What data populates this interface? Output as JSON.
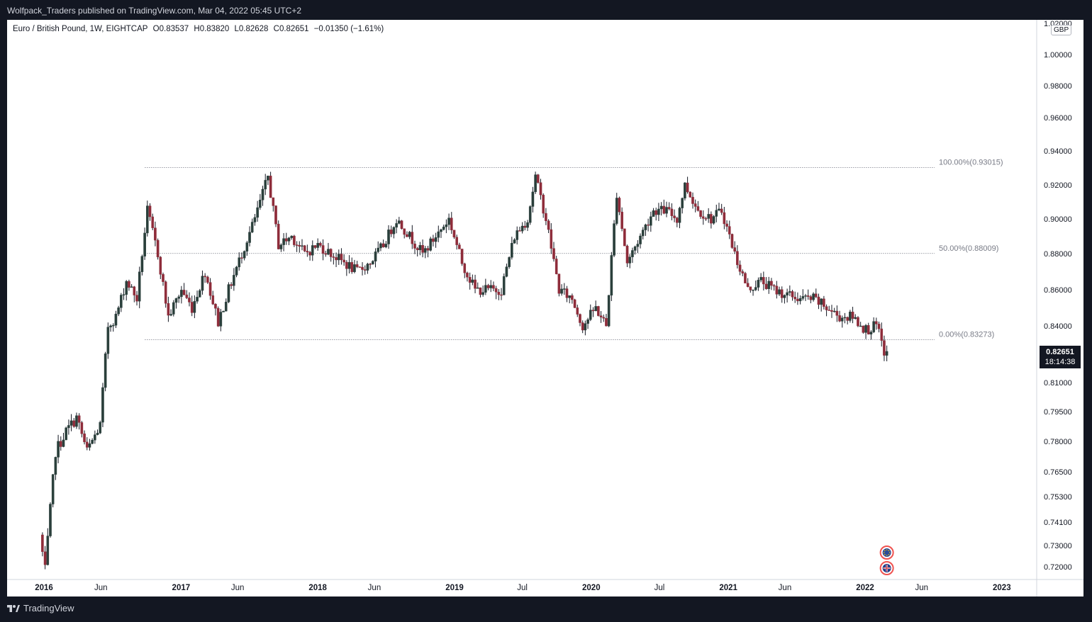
{
  "header": {
    "publisher_line": "Wolfpack_Traders published on TradingView.com, Mar 04, 2022 05:45 UTC+2"
  },
  "legend": {
    "symbol": "Euro / British Pound, 1W, EIGHTCAP",
    "open": "O0.83537",
    "high": "H0.83820",
    "low": "L0.82628",
    "close": "C0.82651",
    "change": "−0.01350 (−1.61%)"
  },
  "price_tag": {
    "price": "0.82651",
    "countdown": "18:14:38"
  },
  "unit_badge": "GBP",
  "footer": {
    "brand": "TradingView"
  },
  "colors": {
    "up": "#26a69a",
    "down": "#ef5350",
    "candle_body_up": "#2a3f3b",
    "candle_body_down": "#8e2c3a",
    "frame": "#131722"
  },
  "chart_data": {
    "type": "candlestick",
    "title": "Euro / British Pound, 1W, EIGHTCAP",
    "y_axis": {
      "unit": "GBP",
      "scale": "log",
      "ticks": [
        "0.72000",
        "0.73000",
        "0.74100",
        "0.75300",
        "0.76500",
        "0.78000",
        "0.79500",
        "0.81000",
        "0.84000",
        "0.86000",
        "0.88000",
        "0.90000",
        "0.92000",
        "0.94000",
        "0.96000",
        "0.98000",
        "1.00000",
        "1.02000"
      ]
    },
    "x_axis": {
      "ticks": [
        {
          "label": "2016",
          "year": true
        },
        {
          "label": "Jun",
          "year": false
        },
        {
          "label": "2017",
          "year": true
        },
        {
          "label": "Jun",
          "year": false
        },
        {
          "label": "2018",
          "year": true
        },
        {
          "label": "Jun",
          "year": false
        },
        {
          "label": "2019",
          "year": true
        },
        {
          "label": "Jul",
          "year": false
        },
        {
          "label": "2020",
          "year": true
        },
        {
          "label": "Jul",
          "year": false
        },
        {
          "label": "2021",
          "year": true
        },
        {
          "label": "Jun",
          "year": false
        },
        {
          "label": "2022",
          "year": true
        },
        {
          "label": "Jun",
          "year": false
        },
        {
          "label": "2023",
          "year": true
        }
      ]
    },
    "fib_levels": [
      {
        "label": "100.00%(0.93015)",
        "price": 0.93015
      },
      {
        "label": "50.00%(0.88009)",
        "price": 0.88009
      },
      {
        "label": "0.00%(0.83273)",
        "price": 0.83273
      }
    ],
    "price_path": [
      [
        "2015-12-28",
        0.735
      ],
      [
        "2016-01-11",
        0.718
      ],
      [
        "2016-02-08",
        0.775
      ],
      [
        "2016-03-07",
        0.785
      ],
      [
        "2016-04-04",
        0.792
      ],
      [
        "2016-05-02",
        0.775
      ],
      [
        "2016-06-06",
        0.788
      ],
      [
        "2016-06-27",
        0.84
      ],
      [
        "2016-07-18",
        0.845
      ],
      [
        "2016-08-15",
        0.865
      ],
      [
        "2016-09-12",
        0.855
      ],
      [
        "2016-10-10",
        0.905
      ],
      [
        "2016-11-07",
        0.88
      ],
      [
        "2016-12-05",
        0.845
      ],
      [
        "2017-01-09",
        0.86
      ],
      [
        "2017-02-06",
        0.85
      ],
      [
        "2017-03-13",
        0.87
      ],
      [
        "2017-04-17",
        0.842
      ],
      [
        "2017-05-15",
        0.86
      ],
      [
        "2017-06-19",
        0.88
      ],
      [
        "2017-07-24",
        0.9
      ],
      [
        "2017-08-28",
        0.925
      ],
      [
        "2017-09-25",
        0.885
      ],
      [
        "2017-10-30",
        0.89
      ],
      [
        "2017-12-04",
        0.88
      ],
      [
        "2018-01-08",
        0.885
      ],
      [
        "2018-02-12",
        0.88
      ],
      [
        "2018-03-19",
        0.875
      ],
      [
        "2018-04-23",
        0.87
      ],
      [
        "2018-05-28",
        0.875
      ],
      [
        "2018-07-02",
        0.885
      ],
      [
        "2018-08-06",
        0.9
      ],
      [
        "2018-09-10",
        0.89
      ],
      [
        "2018-10-15",
        0.88
      ],
      [
        "2018-11-19",
        0.89
      ],
      [
        "2018-12-24",
        0.9
      ],
      [
        "2019-01-28",
        0.875
      ],
      [
        "2019-03-04",
        0.86
      ],
      [
        "2019-04-08",
        0.86
      ],
      [
        "2019-05-13",
        0.86
      ],
      [
        "2019-06-17",
        0.89
      ],
      [
        "2019-07-22",
        0.9
      ],
      [
        "2019-08-12",
        0.925
      ],
      [
        "2019-09-09",
        0.9
      ],
      [
        "2019-10-14",
        0.86
      ],
      [
        "2019-11-18",
        0.855
      ],
      [
        "2019-12-16",
        0.84
      ],
      [
        "2020-01-20",
        0.85
      ],
      [
        "2020-02-17",
        0.84
      ],
      [
        "2020-03-16",
        0.915
      ],
      [
        "2020-04-13",
        0.875
      ],
      [
        "2020-05-18",
        0.89
      ],
      [
        "2020-06-22",
        0.905
      ],
      [
        "2020-07-27",
        0.905
      ],
      [
        "2020-08-24",
        0.9
      ],
      [
        "2020-09-14",
        0.92
      ],
      [
        "2020-10-19",
        0.905
      ],
      [
        "2020-11-23",
        0.9
      ],
      [
        "2020-12-21",
        0.905
      ],
      [
        "2021-01-25",
        0.88
      ],
      [
        "2021-03-01",
        0.86
      ],
      [
        "2021-04-05",
        0.865
      ],
      [
        "2021-05-10",
        0.86
      ],
      [
        "2021-06-14",
        0.857
      ],
      [
        "2021-07-19",
        0.855
      ],
      [
        "2021-08-23",
        0.855
      ],
      [
        "2021-09-27",
        0.85
      ],
      [
        "2021-11-01",
        0.845
      ],
      [
        "2021-12-06",
        0.845
      ],
      [
        "2022-01-10",
        0.838
      ],
      [
        "2022-02-07",
        0.84
      ],
      [
        "2022-02-28",
        0.82651
      ]
    ]
  }
}
